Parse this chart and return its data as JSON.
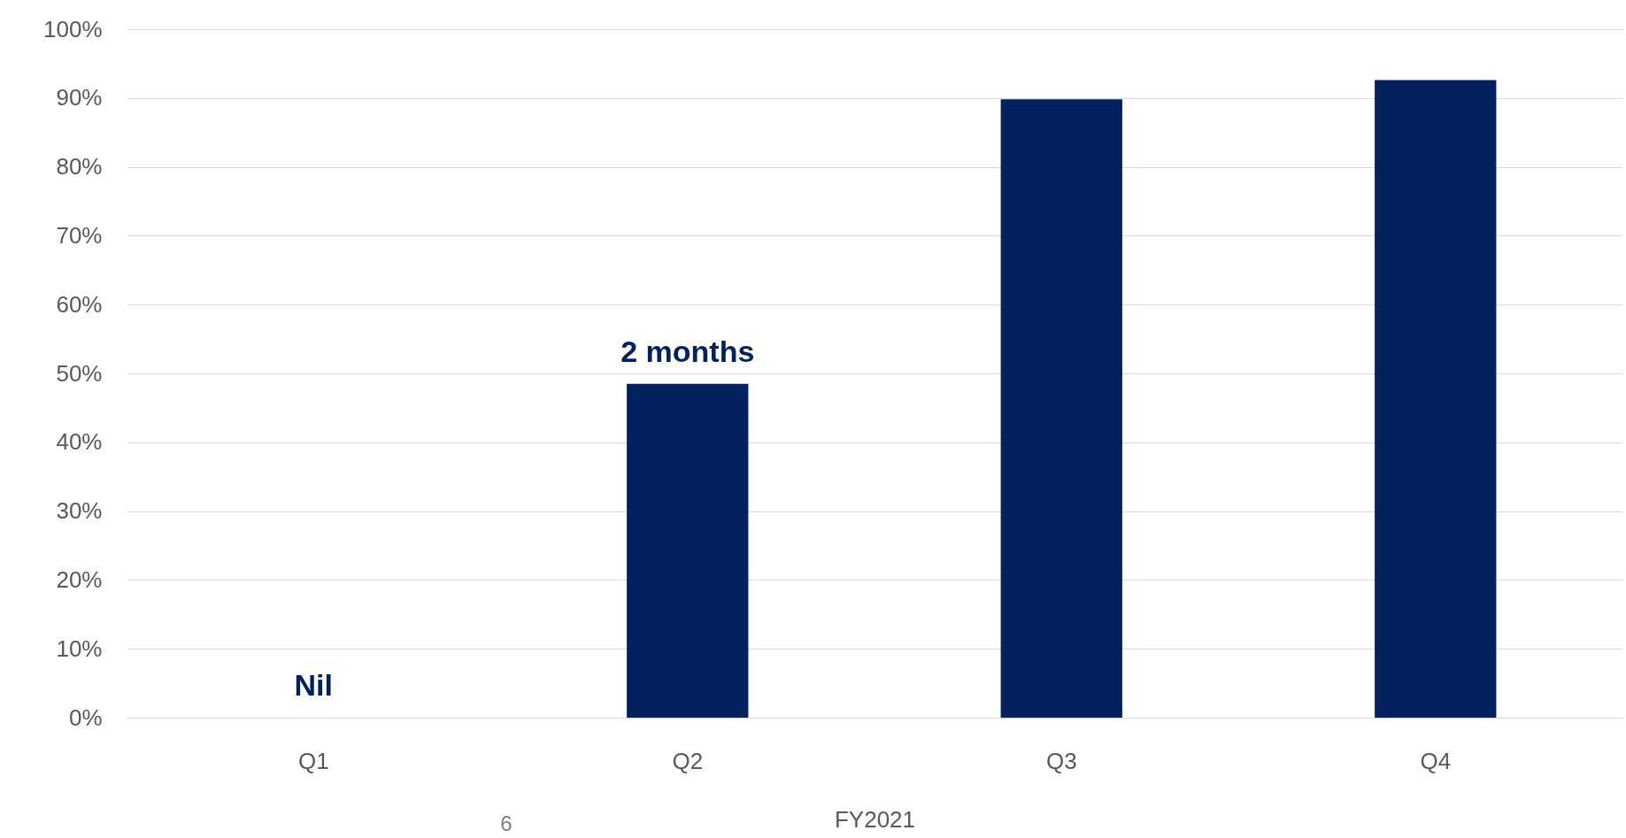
{
  "chart_data": {
    "type": "bar",
    "categories": [
      "Q1",
      "Q2",
      "Q3",
      "Q4"
    ],
    "values": [
      0,
      48.5,
      89.8,
      92.6
    ],
    "color": "#03215f",
    "xlabel": "FY2021",
    "ylim": [
      0,
      100
    ],
    "yticks": [
      {
        "value": 0,
        "label": "0%"
      },
      {
        "value": 10,
        "label": "10%"
      },
      {
        "value": 20,
        "label": "20%"
      },
      {
        "value": 30,
        "label": "30%"
      },
      {
        "value": 40,
        "label": "40%"
      },
      {
        "value": 50,
        "label": "50%"
      },
      {
        "value": 60,
        "label": "60%"
      },
      {
        "value": 70,
        "label": "70%"
      },
      {
        "value": 80,
        "label": "80%"
      },
      {
        "value": 90,
        "label": "90%"
      },
      {
        "value": 100,
        "label": "100%"
      }
    ],
    "grid": "y",
    "annotations": [
      {
        "text": "Nil",
        "x": "Q1",
        "y": 0
      },
      {
        "text": "2 months",
        "x": "Q2",
        "y": 48.5
      },
      "6"
    ]
  }
}
